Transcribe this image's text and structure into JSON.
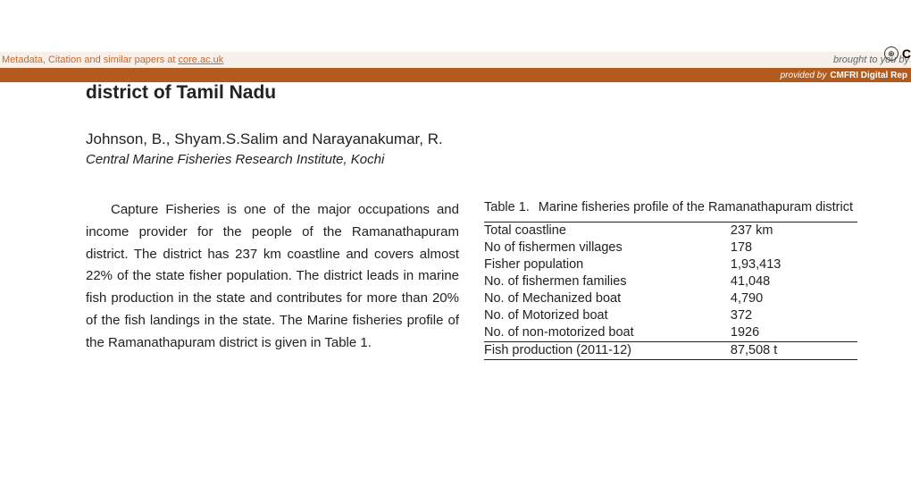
{
  "banner": {
    "metadata_text_prefix": "Metadata, Citation and similar papers at ",
    "core_link": "core.ac.uk",
    "brought_by": "brought to you by",
    "core_label": "C",
    "provided_by_label": "provided by",
    "provided_by_value": "CMFRI Digital Rep"
  },
  "paper": {
    "title": "district of Tamil Nadu",
    "authors": "Johnson, B., Shyam.S.Salim and Narayanakumar, R.",
    "affiliation": "Central Marine Fisheries Research Institute, Kochi",
    "body_para": "Capture Fisheries is one of the major occupations and income provider for the people of the Ramanathapuram district. The district has 237 km coastline and covers almost 22% of the state fisher population. The district leads in marine fish production in the state and contributes for more than 20% of the fish landings in the state. The Marine fisheries profile of the Ramanathapuram district is given in Table 1."
  },
  "table": {
    "caption_num": "Table 1.",
    "caption_text": "Marine fisheries profile of the Ramanathapuram district",
    "rows": [
      {
        "label": "Total coastline",
        "value": "237 km"
      },
      {
        "label": "No of fishermen villages",
        "value": "178"
      },
      {
        "label": "Fisher population",
        "value": "1,93,413"
      },
      {
        "label": "No. of fishermen families",
        "value": "41,048"
      },
      {
        "label": "No. of Mechanized boat",
        "value": "4,790"
      },
      {
        "label": "No. of Motorized boat",
        "value": "372"
      },
      {
        "label": "No. of non-motorized boat",
        "value": "1926"
      },
      {
        "label": "Fish production (2011-12)",
        "value": "87,508 t"
      }
    ]
  },
  "style": {
    "accent_color": "#c5692e",
    "bar_color": "#b35a1f",
    "text_color": "#222",
    "background_color": "#ffffff",
    "banner_bg": "#f7f0ea"
  }
}
